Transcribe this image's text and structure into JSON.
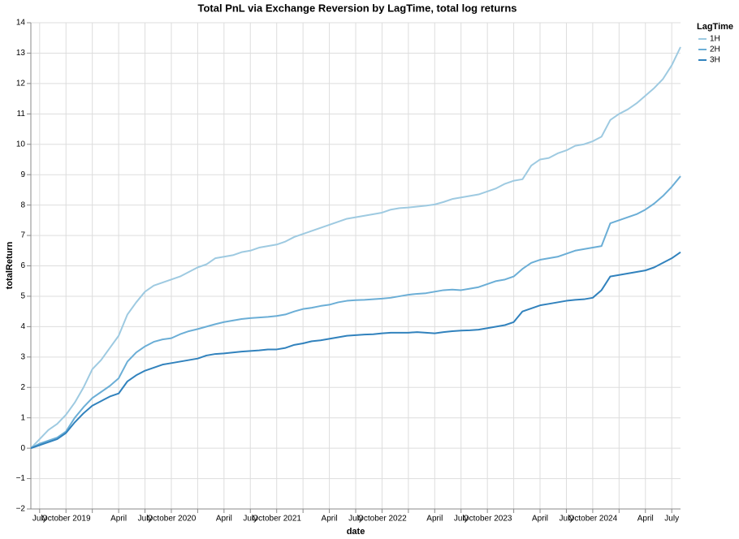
{
  "chart_data": {
    "type": "line",
    "title": "Total PnL via Exchange Reversion by LagTime, total log returns",
    "x_label": "date",
    "y_label": "totalReturn",
    "legend_title": "LagTime",
    "legend_position": "right",
    "grid": true,
    "x": [
      "2019-06",
      "2019-07",
      "2019-08",
      "2019-09",
      "2019-10",
      "2019-11",
      "2019-12",
      "2020-01",
      "2020-02",
      "2020-03",
      "2020-04",
      "2020-05",
      "2020-06",
      "2020-07",
      "2020-08",
      "2020-09",
      "2020-10",
      "2020-11",
      "2020-12",
      "2021-01",
      "2021-02",
      "2021-03",
      "2021-04",
      "2021-05",
      "2021-06",
      "2021-07",
      "2021-08",
      "2021-09",
      "2021-10",
      "2021-11",
      "2021-12",
      "2022-01",
      "2022-02",
      "2022-03",
      "2022-04",
      "2022-05",
      "2022-06",
      "2022-07",
      "2022-08",
      "2022-09",
      "2022-10",
      "2022-11",
      "2022-12",
      "2023-01",
      "2023-02",
      "2023-03",
      "2023-04",
      "2023-05",
      "2023-06",
      "2023-07",
      "2023-08",
      "2023-09",
      "2023-10",
      "2023-11",
      "2023-12",
      "2024-01",
      "2024-02",
      "2024-03",
      "2024-04",
      "2024-05",
      "2024-06",
      "2024-07",
      "2024-08",
      "2024-09",
      "2024-10",
      "2024-11",
      "2024-12",
      "2025-01",
      "2025-02",
      "2025-03",
      "2025-04",
      "2025-05",
      "2025-06",
      "2025-07",
      "2025-08"
    ],
    "series": [
      {
        "name": "1H",
        "color": "#9ecae1",
        "values": [
          0,
          0.3,
          0.6,
          0.8,
          1.1,
          1.5,
          2.0,
          2.6,
          2.9,
          3.3,
          3.7,
          4.4,
          4.8,
          5.15,
          5.35,
          5.45,
          5.55,
          5.65,
          5.8,
          5.95,
          6.05,
          6.25,
          6.3,
          6.35,
          6.45,
          6.5,
          6.6,
          6.65,
          6.7,
          6.8,
          6.95,
          7.05,
          7.15,
          7.25,
          7.35,
          7.45,
          7.55,
          7.6,
          7.65,
          7.7,
          7.75,
          7.85,
          7.9,
          7.92,
          7.95,
          7.98,
          8.02,
          8.1,
          8.2,
          8.25,
          8.3,
          8.35,
          8.45,
          8.55,
          8.7,
          8.8,
          8.85,
          9.3,
          9.5,
          9.55,
          9.7,
          9.8,
          9.95,
          10.0,
          10.1,
          10.25,
          10.8,
          11.0,
          11.15,
          11.35,
          11.6,
          11.85,
          12.15,
          12.6,
          13.2
        ]
      },
      {
        "name": "2H",
        "color": "#6baed6",
        "values": [
          0,
          0.15,
          0.25,
          0.35,
          0.55,
          1.0,
          1.35,
          1.65,
          1.85,
          2.05,
          2.3,
          2.85,
          3.15,
          3.35,
          3.5,
          3.58,
          3.62,
          3.75,
          3.85,
          3.92,
          4.0,
          4.08,
          4.15,
          4.2,
          4.25,
          4.28,
          4.3,
          4.32,
          4.35,
          4.4,
          4.5,
          4.58,
          4.62,
          4.68,
          4.72,
          4.8,
          4.85,
          4.87,
          4.88,
          4.9,
          4.92,
          4.95,
          5.0,
          5.05,
          5.08,
          5.1,
          5.15,
          5.2,
          5.22,
          5.2,
          5.25,
          5.3,
          5.4,
          5.5,
          5.55,
          5.65,
          5.9,
          6.1,
          6.2,
          6.25,
          6.3,
          6.4,
          6.5,
          6.55,
          6.6,
          6.65,
          7.4,
          7.5,
          7.6,
          7.7,
          7.85,
          8.05,
          8.3,
          8.6,
          8.95
        ]
      },
      {
        "name": "3H",
        "color": "#3182bd",
        "values": [
          0,
          0.1,
          0.2,
          0.3,
          0.5,
          0.85,
          1.15,
          1.4,
          1.55,
          1.7,
          1.8,
          2.2,
          2.4,
          2.55,
          2.65,
          2.75,
          2.8,
          2.85,
          2.9,
          2.95,
          3.05,
          3.1,
          3.12,
          3.15,
          3.18,
          3.2,
          3.22,
          3.25,
          3.25,
          3.3,
          3.4,
          3.45,
          3.52,
          3.55,
          3.6,
          3.65,
          3.7,
          3.72,
          3.74,
          3.75,
          3.78,
          3.8,
          3.8,
          3.8,
          3.82,
          3.8,
          3.78,
          3.82,
          3.85,
          3.87,
          3.88,
          3.9,
          3.95,
          4.0,
          4.05,
          4.15,
          4.5,
          4.6,
          4.7,
          4.75,
          4.8,
          4.85,
          4.88,
          4.9,
          4.95,
          5.2,
          5.65,
          5.7,
          5.75,
          5.8,
          5.85,
          5.95,
          6.1,
          6.25,
          6.45
        ]
      }
    ],
    "xlim": [
      "2019-06",
      "2025-08"
    ],
    "xticks": [
      {
        "value": "2019-07",
        "label": "July"
      },
      {
        "value": "2019-10",
        "label": "October 2019"
      },
      {
        "value": "2020-01",
        "label": null
      },
      {
        "value": "2020-04",
        "label": "April"
      },
      {
        "value": "2020-07",
        "label": "July"
      },
      {
        "value": "2020-10",
        "label": "October 2020"
      },
      {
        "value": "2021-01",
        "label": null
      },
      {
        "value": "2021-04",
        "label": "April"
      },
      {
        "value": "2021-07",
        "label": "July"
      },
      {
        "value": "2021-10",
        "label": "October 2021"
      },
      {
        "value": "2022-01",
        "label": null
      },
      {
        "value": "2022-04",
        "label": "April"
      },
      {
        "value": "2022-07",
        "label": "July"
      },
      {
        "value": "2022-10",
        "label": "October 2022"
      },
      {
        "value": "2023-01",
        "label": null
      },
      {
        "value": "2023-04",
        "label": "April"
      },
      {
        "value": "2023-07",
        "label": "July"
      },
      {
        "value": "2023-10",
        "label": "October 2023"
      },
      {
        "value": "2024-01",
        "label": null
      },
      {
        "value": "2024-04",
        "label": "April"
      },
      {
        "value": "2024-07",
        "label": "July"
      },
      {
        "value": "2024-10",
        "label": "October 2024"
      },
      {
        "value": "2025-01",
        "label": null
      },
      {
        "value": "2025-04",
        "label": "April"
      },
      {
        "value": "2025-07",
        "label": "July"
      }
    ],
    "ylim": [
      -2,
      14
    ],
    "yticks": [
      {
        "value": -2,
        "label": "−2"
      },
      {
        "value": -1,
        "label": "−1"
      },
      0,
      1,
      2,
      3,
      4,
      5,
      6,
      7,
      8,
      9,
      10,
      11,
      12,
      13,
      14
    ]
  }
}
